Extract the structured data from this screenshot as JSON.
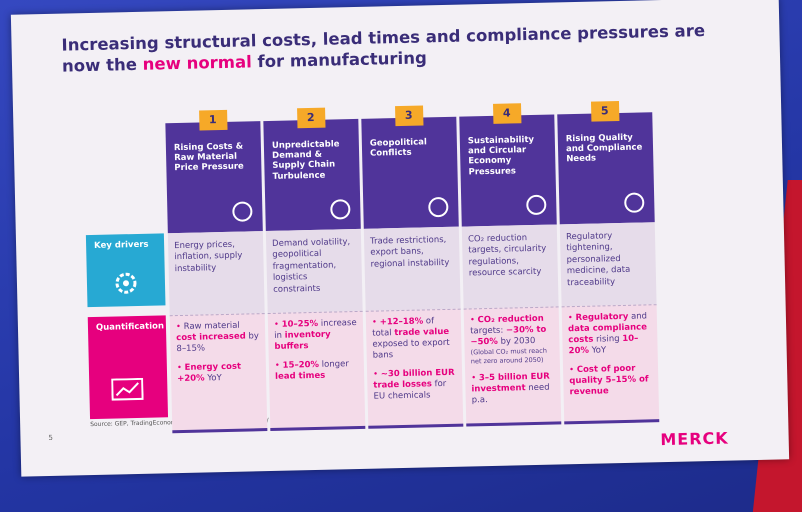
{
  "slide": {
    "title": [
      {
        "text": "Increasing structural costs, lead times and compliance pressures are now the "
      },
      {
        "text": "new normal",
        "strong": true
      },
      {
        "text": " for manufacturing"
      }
    ],
    "row_labels": [
      "Key drivers",
      "Quantification"
    ],
    "columns": [
      {
        "number": "1",
        "title": "Rising Costs & Raw Material Price Pressure",
        "drivers": "Energy prices, inflation, supply instability",
        "quantification": [
          [
            {
              "text": "Raw material "
            },
            {
              "text": "cost increased",
              "strong": true
            },
            {
              "text": " by 8–15%"
            }
          ],
          [
            {
              "text": "Energy cost +20%",
              "strong": true
            },
            {
              "text": " YoY"
            }
          ]
        ]
      },
      {
        "number": "2",
        "title": "Unpredictable Demand & Supply Chain Turbulence",
        "drivers": "Demand volatility, geopolitical fragmentation, logistics constraints",
        "quantification": [
          [
            {
              "text": "10–25%",
              "strong": true
            },
            {
              "text": " increase in "
            },
            {
              "text": "inventory buffers",
              "strong": true
            }
          ],
          [
            {
              "text": "15–20%",
              "strong": true
            },
            {
              "text": " longer "
            },
            {
              "text": "lead times",
              "strong": true
            }
          ]
        ]
      },
      {
        "number": "3",
        "title": "Geopolitical Conflicts",
        "drivers": "Trade restrictions, export bans, regional instability",
        "quantification": [
          [
            {
              "text": "+12–18%",
              "strong": true
            },
            {
              "text": " of total "
            },
            {
              "text": "trade value",
              "strong": true
            },
            {
              "text": " exposed to export bans"
            }
          ],
          [
            {
              "text": "~30 billion EUR trade losses",
              "strong": true
            },
            {
              "text": " for EU chemicals"
            }
          ]
        ]
      },
      {
        "number": "4",
        "title": "Sustainability and Circular Economy Pressures",
        "drivers": "CO₂ reduction targets, circularity regulations, resource scarcity",
        "quantification": [
          [
            {
              "text": "CO₂ reduction",
              "strong": true
            },
            {
              "text": " targets: "
            },
            {
              "text": "−30% to −50%",
              "strong": true
            },
            {
              "text": " by 2030"
            },
            {
              "text": " (Global CO₂ must reach net zero around 2050)",
              "small": true
            }
          ],
          [
            {
              "text": "3–5 billion EUR investment",
              "strong": true
            },
            {
              "text": " need p.a."
            }
          ]
        ]
      },
      {
        "number": "5",
        "title": "Rising Quality and Compliance Needs",
        "drivers": "Regulatory tightening, personalized medicine, data traceability",
        "quantification": [
          [
            {
              "text": "Regulatory",
              "strong": true
            },
            {
              "text": " and "
            },
            {
              "text": "data compliance costs",
              "strong": true
            },
            {
              "text": " rising "
            },
            {
              "text": "10–20%",
              "strong": true
            },
            {
              "text": " YoY"
            }
          ],
          [
            {
              "text": "Cost of poor quality 5–15% of revenue",
              "strong": true
            }
          ]
        ]
      }
    ],
    "source": "Source: GEP, TradingEconomics, WTO, LNS Research, EMA / FDA, McKinsey, Deloitte",
    "page_number": "5",
    "logo": "MERCK"
  }
}
